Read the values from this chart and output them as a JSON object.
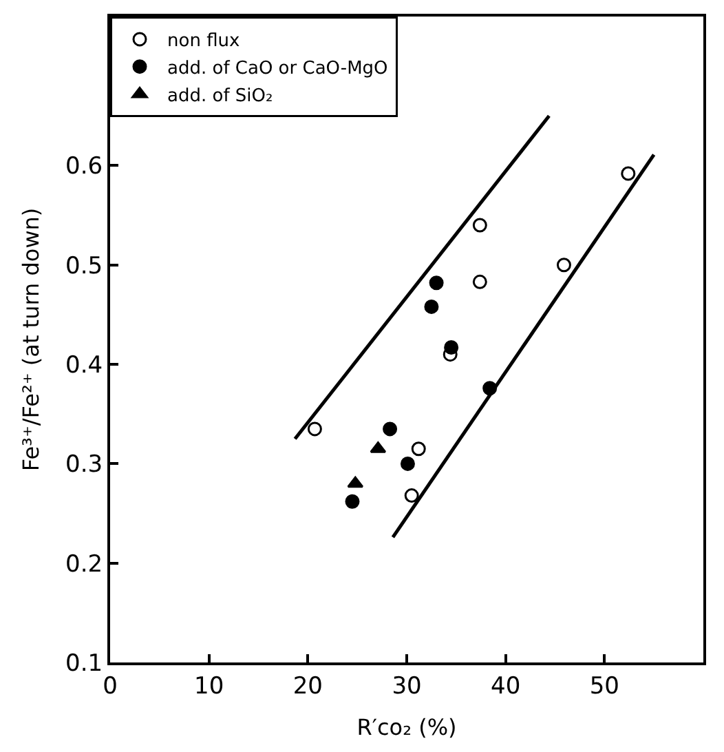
{
  "chart_data": {
    "type": "scatter",
    "xlabel": "R′co₂ (%)",
    "ylabel": "Fe³⁺/Fe²⁺ (at turn down)",
    "xlim": [
      0,
      60
    ],
    "ylim": [
      0.1,
      0.75
    ],
    "xticks": [
      0,
      10,
      20,
      30,
      40,
      50
    ],
    "yticks": [
      0.1,
      0.2,
      0.3,
      0.4,
      0.5,
      0.6
    ],
    "grid": false,
    "legend": "top left",
    "series": [
      {
        "name": "non flux",
        "color": "#000000",
        "marker": "circle-open",
        "x": [
          20.7,
          30.5,
          31.2,
          34.4,
          37.4,
          37.4,
          45.9,
          52.4
        ],
        "values": [
          0.335,
          0.268,
          0.315,
          0.41,
          0.483,
          0.54,
          0.5,
          0.592
        ]
      },
      {
        "name": "add. of CaO or CaO-MgO",
        "color": "#000000",
        "marker": "circle",
        "x": [
          24.5,
          28.3,
          30.1,
          32.5,
          33.0,
          34.5,
          38.4
        ],
        "values": [
          0.262,
          0.335,
          0.3,
          0.458,
          0.482,
          0.417,
          0.376
        ]
      },
      {
        "name": "add. of SiO₂",
        "color": "#000000",
        "marker": "triangle",
        "x": [
          24.8,
          27.1
        ],
        "values": [
          0.28,
          0.315
        ]
      },
      {
        "type": "line",
        "color": "#000000",
        "line_style": "solid",
        "x": [
          18.7,
          44.4
        ],
        "values": [
          0.325,
          0.65
        ]
      },
      {
        "type": "line",
        "color": "#000000",
        "line_style": "solid",
        "x": [
          28.6,
          55.0
        ],
        "values": [
          0.226,
          0.611
        ]
      }
    ]
  }
}
